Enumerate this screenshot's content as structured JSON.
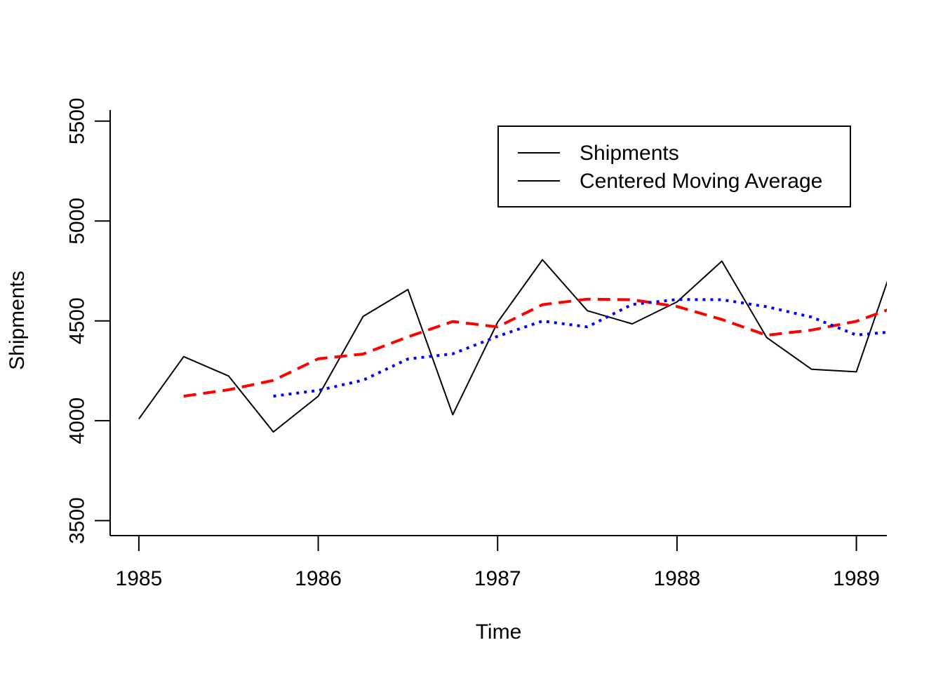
{
  "chart_data": {
    "type": "line",
    "title": "",
    "xlabel": "Time",
    "ylabel": "Shipments",
    "xlim": [
      1984.84,
      1989.17
    ],
    "ylim": [
      3425,
      5580
    ],
    "x_ticks": [
      1985,
      1986,
      1987,
      1988,
      1989
    ],
    "x_tick_labels": [
      "1985",
      "1986",
      "1987",
      "1988",
      "1989"
    ],
    "y_ticks": [
      3500,
      4000,
      4500,
      5000,
      5500
    ],
    "y_tick_labels": [
      "3500",
      "4000",
      "4500",
      "5000",
      "5500"
    ],
    "grid": false,
    "legend": {
      "position": "top-right",
      "entries": [
        "Shipments",
        "Centered Moving Average"
      ]
    },
    "series": [
      {
        "name": "Shipments",
        "color": "#000000",
        "style": "solid",
        "x": [
          1985.0,
          1985.25,
          1985.5,
          1985.75,
          1986.0,
          1986.25,
          1986.5,
          1986.75,
          1987.0,
          1987.25,
          1987.5,
          1987.75,
          1988.0,
          1988.25,
          1988.5,
          1988.75,
          1989.0,
          1989.25
        ],
        "values": [
          4009,
          4321,
          4224,
          3944,
          4123,
          4522,
          4657,
          4030,
          4493,
          4806,
          4551,
          4485,
          4595,
          4799,
          4417,
          4258,
          4245,
          4900
        ]
      },
      {
        "name": "",
        "color": "#ff0000",
        "style": "dashed",
        "x": [
          1985.25,
          1985.5,
          1985.75,
          1986.0,
          1986.25,
          1986.5,
          1986.75,
          1987.0,
          1987.25,
          1987.5,
          1987.75,
          1988.0,
          1988.25,
          1988.5,
          1988.75,
          1989.0,
          1989.25
        ],
        "values": [
          4123,
          4155,
          4202,
          4310,
          4334,
          4420,
          4497,
          4470,
          4581,
          4609,
          4606,
          4572,
          4507,
          4428,
          4454,
          4498,
          4580
        ]
      },
      {
        "name": "",
        "color": "#0000ff",
        "style": "dotted",
        "x": [
          1985.75,
          1986.0,
          1986.25,
          1986.5,
          1986.75,
          1987.0,
          1987.25,
          1987.5,
          1987.75,
          1988.0,
          1988.25,
          1988.5,
          1988.75,
          1989.0,
          1989.25
        ],
        "values": [
          4123,
          4152,
          4203,
          4309,
          4335,
          4423,
          4499,
          4470,
          4582,
          4607,
          4606,
          4571,
          4519,
          4429,
          4450
        ]
      }
    ]
  }
}
